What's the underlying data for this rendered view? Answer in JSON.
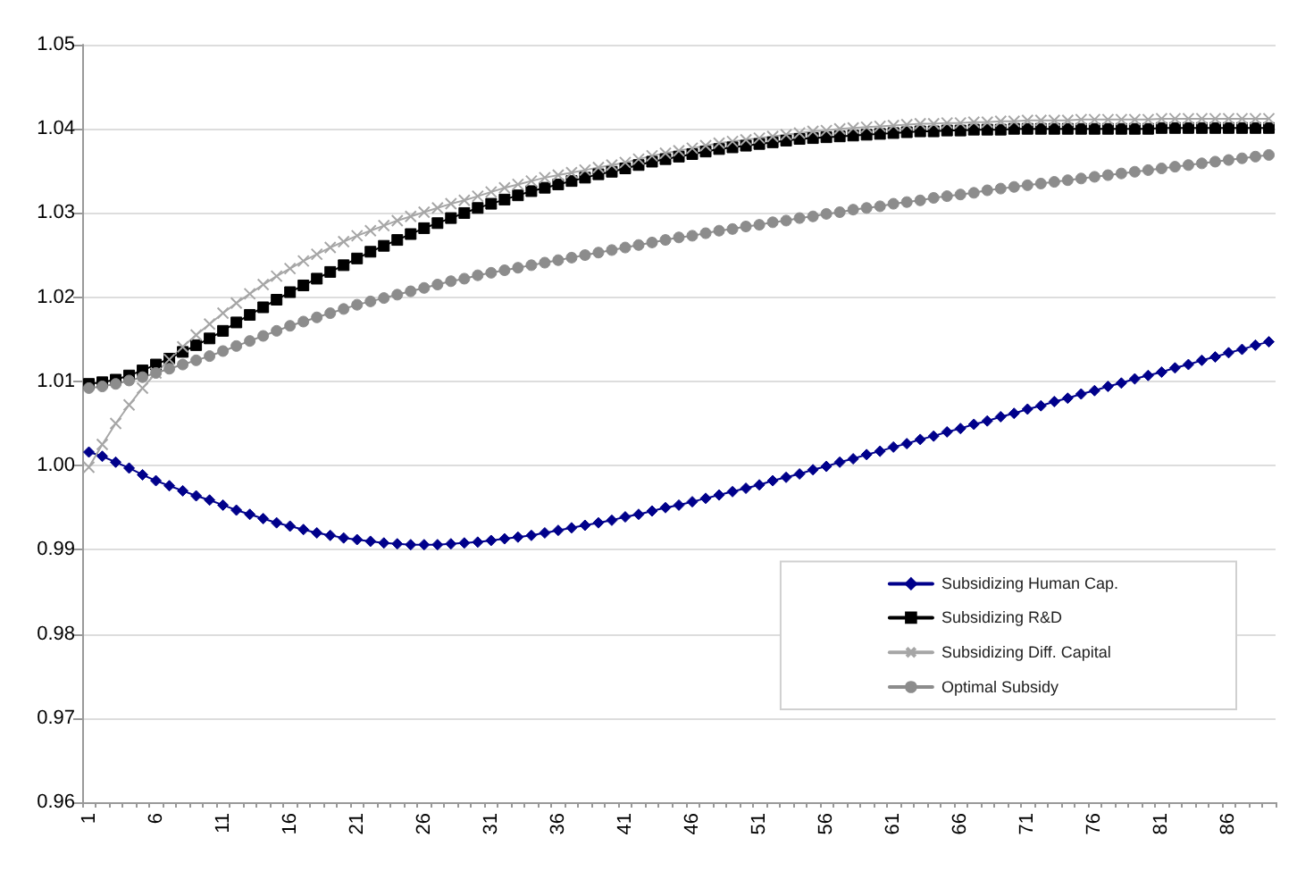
{
  "chart_data": {
    "type": "line",
    "categories": [
      "1",
      null,
      null,
      null,
      null,
      "6",
      null,
      null,
      null,
      null,
      "11",
      null,
      null,
      null,
      null,
      "16",
      null,
      null,
      null,
      null,
      "21",
      null,
      null,
      null,
      null,
      "26",
      null,
      null,
      null,
      null,
      "31",
      null,
      null,
      null,
      null,
      "36",
      null,
      null,
      null,
      null,
      "41",
      null,
      null,
      null,
      null,
      "46",
      null,
      null,
      null,
      null,
      "51",
      null,
      null,
      null,
      null,
      "56",
      null,
      null,
      null,
      null,
      "61",
      null,
      null,
      null,
      null,
      "66",
      null,
      null,
      null,
      null,
      "71",
      null,
      null,
      null,
      null,
      "76",
      null,
      null,
      null,
      null,
      "81",
      null,
      null,
      null,
      null,
      "86",
      null,
      null,
      null
    ],
    "series": [
      {
        "name": "Subsidizing Human Cap.",
        "color": "#00008b",
        "marker": "diamond",
        "values": [
          1.0016,
          1.0011,
          1.0004,
          0.9997,
          0.9989,
          0.9982,
          0.9976,
          0.997,
          0.9964,
          0.9959,
          0.9953,
          0.9947,
          0.9942,
          0.9937,
          0.9932,
          0.9928,
          0.9924,
          0.992,
          0.9917,
          0.9914,
          0.9912,
          0.991,
          0.9908,
          0.9907,
          0.9906,
          0.9906,
          0.9906,
          0.9907,
          0.9908,
          0.9909,
          0.9911,
          0.9913,
          0.9915,
          0.9917,
          0.992,
          0.9923,
          0.9926,
          0.9929,
          0.9932,
          0.9935,
          0.9939,
          0.9942,
          0.9946,
          0.995,
          0.9953,
          0.9957,
          0.9961,
          0.9965,
          0.9969,
          0.9973,
          0.9977,
          0.9982,
          0.9986,
          0.999,
          0.9995,
          0.9999,
          1.0004,
          1.0008,
          1.0013,
          1.0017,
          1.0022,
          1.0026,
          1.0031,
          1.0035,
          1.004,
          1.0044,
          1.0049,
          1.0053,
          1.0058,
          1.0062,
          1.0067,
          1.0071,
          1.0076,
          1.008,
          1.0085,
          1.0089,
          1.0094,
          1.0098,
          1.0103,
          1.0107,
          1.0111,
          1.0116,
          1.012,
          1.0125,
          1.0129,
          1.0134,
          1.0138,
          1.0143,
          1.0147
        ]
      },
      {
        "name": "Subsidizing R&D",
        "color": "#000000",
        "marker": "square",
        "values": [
          1.0097,
          1.0099,
          1.0102,
          1.0107,
          1.0113,
          1.012,
          1.0127,
          1.0135,
          1.0143,
          1.0151,
          1.016,
          1.017,
          1.0179,
          1.0188,
          1.0197,
          1.0206,
          1.0214,
          1.0222,
          1.023,
          1.0238,
          1.0246,
          1.0254,
          1.0261,
          1.0268,
          1.0275,
          1.0282,
          1.0288,
          1.0294,
          1.03,
          1.0306,
          1.0311,
          1.0316,
          1.0321,
          1.0326,
          1.033,
          1.0334,
          1.0338,
          1.0342,
          1.0346,
          1.0349,
          1.0353,
          1.0357,
          1.0361,
          1.0364,
          1.0367,
          1.037,
          1.0373,
          1.0376,
          1.0378,
          1.038,
          1.0382,
          1.0384,
          1.0386,
          1.0388,
          1.0389,
          1.039,
          1.0391,
          1.0392,
          1.0393,
          1.0394,
          1.0395,
          1.0396,
          1.0397,
          1.0397,
          1.0398,
          1.0398,
          1.0399,
          1.0399,
          1.0399,
          1.04,
          1.04,
          1.04,
          1.04,
          1.04,
          1.04,
          1.04,
          1.04,
          1.04,
          1.04,
          1.04,
          1.0401,
          1.0401,
          1.0401,
          1.0401,
          1.0401,
          1.0401,
          1.0401,
          1.0401,
          1.0401
        ]
      },
      {
        "name": "Subsidizing Diff. Capital",
        "color": "#a6a6a6",
        "marker": "cross",
        "values": [
          0.9998,
          1.0025,
          1.005,
          1.0072,
          1.0092,
          1.011,
          1.0126,
          1.0141,
          1.0155,
          1.0168,
          1.0181,
          1.0193,
          1.0204,
          1.0215,
          1.0225,
          1.0234,
          1.0243,
          1.0251,
          1.0259,
          1.0266,
          1.0273,
          1.0279,
          1.0285,
          1.0291,
          1.0296,
          1.0301,
          1.0306,
          1.0311,
          1.0315,
          1.032,
          1.0325,
          1.033,
          1.0334,
          1.0338,
          1.0342,
          1.0345,
          1.0348,
          1.0351,
          1.0354,
          1.0357,
          1.036,
          1.0364,
          1.0368,
          1.0371,
          1.0374,
          1.0377,
          1.038,
          1.0383,
          1.0385,
          1.0387,
          1.0389,
          1.0391,
          1.0393,
          1.0395,
          1.0397,
          1.0398,
          1.04,
          1.0401,
          1.0402,
          1.0403,
          1.0404,
          1.0405,
          1.0406,
          1.0406,
          1.0407,
          1.0407,
          1.0408,
          1.0408,
          1.0409,
          1.0409,
          1.041,
          1.041,
          1.041,
          1.041,
          1.0411,
          1.0411,
          1.0411,
          1.0411,
          1.0411,
          1.0411,
          1.0412,
          1.0412,
          1.0412,
          1.0412,
          1.0412,
          1.0412,
          1.0412,
          1.0412,
          1.0412
        ]
      },
      {
        "name": "Optimal Subsidy",
        "color": "#8c8c8c",
        "marker": "circle",
        "values": [
          1.0092,
          1.0094,
          1.0097,
          1.0101,
          1.0105,
          1.011,
          1.0115,
          1.012,
          1.0125,
          1.013,
          1.0136,
          1.0142,
          1.0148,
          1.0154,
          1.016,
          1.0166,
          1.0171,
          1.0176,
          1.0181,
          1.0186,
          1.0191,
          1.0195,
          1.0199,
          1.0203,
          1.0207,
          1.0211,
          1.0215,
          1.0219,
          1.0222,
          1.0226,
          1.0229,
          1.0232,
          1.0235,
          1.0238,
          1.0241,
          1.0244,
          1.0247,
          1.025,
          1.0253,
          1.0256,
          1.0259,
          1.0262,
          1.0265,
          1.0268,
          1.0271,
          1.0273,
          1.0276,
          1.0279,
          1.0281,
          1.0284,
          1.0286,
          1.0289,
          1.0291,
          1.0294,
          1.0296,
          1.0299,
          1.0301,
          1.0304,
          1.0306,
          1.0308,
          1.0311,
          1.0313,
          1.0315,
          1.0318,
          1.032,
          1.0322,
          1.0324,
          1.0327,
          1.0329,
          1.0331,
          1.0333,
          1.0335,
          1.0337,
          1.0339,
          1.0341,
          1.0343,
          1.0345,
          1.0347,
          1.0349,
          1.0351,
          1.0353,
          1.0355,
          1.0357,
          1.0359,
          1.0361,
          1.0363,
          1.0365,
          1.0367,
          1.0369
        ]
      }
    ],
    "ylim": [
      0.96,
      1.05
    ],
    "yticks": [
      {
        "value": 0.96,
        "label": "0.96"
      },
      {
        "value": 0.97,
        "label": "0.97"
      },
      {
        "value": 0.98,
        "label": "0.98"
      },
      {
        "value": 0.99,
        "label": "0.99"
      },
      {
        "value": 1,
        "label": "1.00"
      },
      {
        "value": 1.01,
        "label": "1.01"
      },
      {
        "value": 1.02,
        "label": "1.02"
      },
      {
        "value": 1.03,
        "label": "1.03"
      },
      {
        "value": 1.04,
        "label": "1.04"
      },
      {
        "value": 1.05,
        "label": "1.05"
      }
    ],
    "grid": "y",
    "legend": "bottom right",
    "line_style": "solid"
  }
}
